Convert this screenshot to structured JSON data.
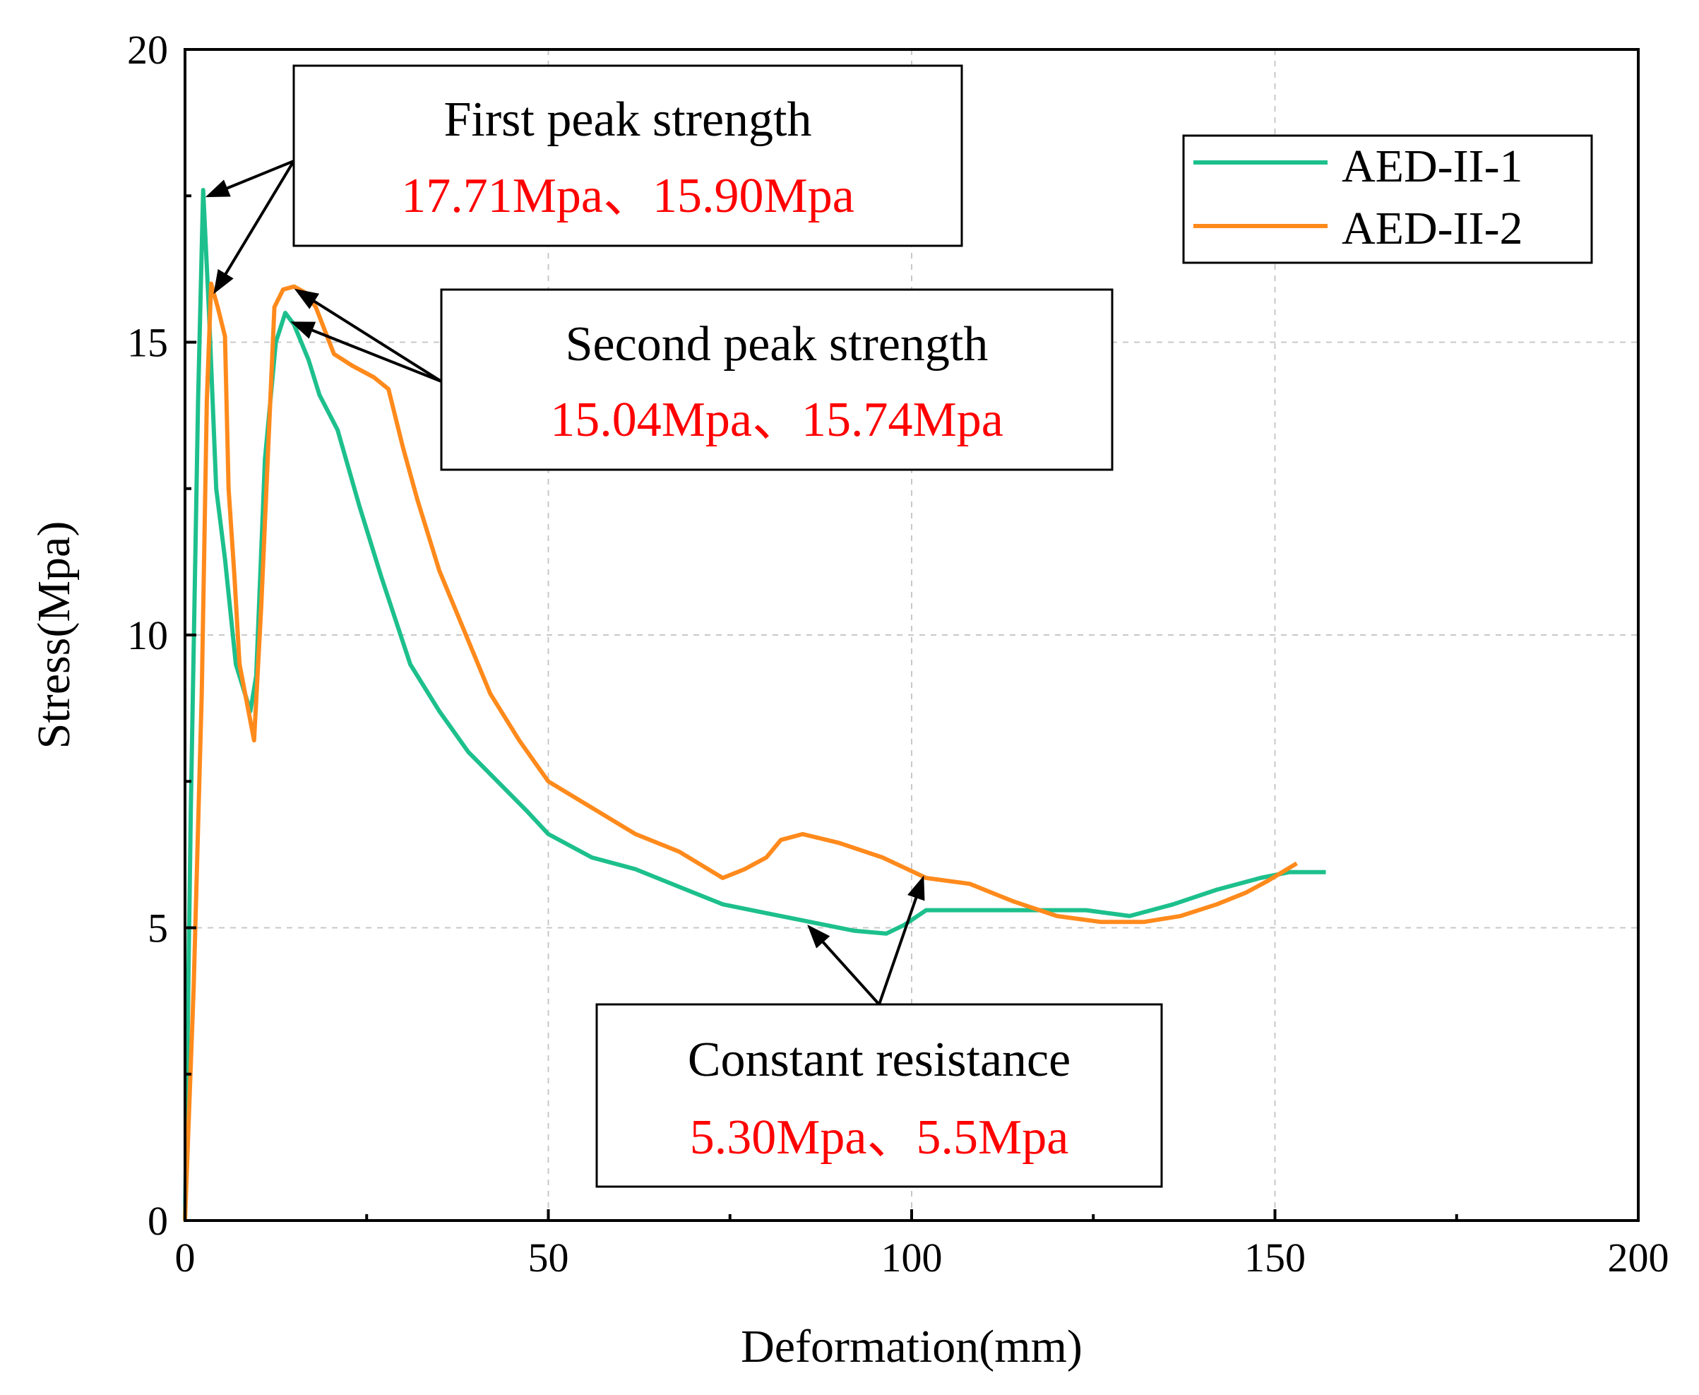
{
  "chart_data": {
    "type": "line",
    "xlabel": "Deformation(mm)",
    "ylabel": "Stress(Mpa)",
    "xlim": [
      0,
      200
    ],
    "ylim": [
      0,
      20
    ],
    "xticks": [
      0,
      50,
      100,
      150,
      200
    ],
    "yticks": [
      0,
      5,
      10,
      15,
      20
    ],
    "grid": true,
    "legend_position": "top-right",
    "series": [
      {
        "name": "AED-II-1",
        "color": "#1dc08c",
        "points": [
          [
            0,
            0
          ],
          [
            0.8,
            7
          ],
          [
            1.8,
            14
          ],
          [
            2.5,
            17.6
          ],
          [
            3.3,
            15.5
          ],
          [
            4.3,
            12.5
          ],
          [
            5.5,
            11.3
          ],
          [
            7,
            9.5
          ],
          [
            9,
            8.7
          ],
          [
            9.8,
            9.3
          ],
          [
            11,
            13
          ],
          [
            12.5,
            15
          ],
          [
            13.8,
            15.5
          ],
          [
            15,
            15.3
          ],
          [
            17,
            14.7
          ],
          [
            18.5,
            14.1
          ],
          [
            21,
            13.5
          ],
          [
            24,
            12.2
          ],
          [
            27,
            11
          ],
          [
            31,
            9.5
          ],
          [
            35,
            8.7
          ],
          [
            39,
            8
          ],
          [
            43,
            7.5
          ],
          [
            47,
            7
          ],
          [
            50,
            6.6
          ],
          [
            56,
            6.2
          ],
          [
            62,
            6
          ],
          [
            68,
            5.7
          ],
          [
            74,
            5.4
          ],
          [
            80,
            5.25
          ],
          [
            86,
            5.1
          ],
          [
            92,
            4.95
          ],
          [
            96.5,
            4.9
          ],
          [
            99,
            5.05
          ],
          [
            102,
            5.3
          ],
          [
            110,
            5.3
          ],
          [
            118,
            5.3
          ],
          [
            124,
            5.3
          ],
          [
            130,
            5.2
          ],
          [
            136,
            5.4
          ],
          [
            142,
            5.65
          ],
          [
            148,
            5.85
          ],
          [
            152,
            5.95
          ],
          [
            157,
            5.95
          ]
        ]
      },
      {
        "name": "AED-II-2",
        "color": "#ff8a1c",
        "points": [
          [
            0,
            0
          ],
          [
            1.2,
            4
          ],
          [
            2.3,
            9
          ],
          [
            3,
            14
          ],
          [
            3.6,
            16
          ],
          [
            4.5,
            15.6
          ],
          [
            5.5,
            15.1
          ],
          [
            6,
            12.5
          ],
          [
            6.8,
            11
          ],
          [
            7.5,
            9.5
          ],
          [
            9.5,
            8.2
          ],
          [
            10.5,
            10.5
          ],
          [
            12.3,
            15.6
          ],
          [
            13.5,
            15.9
          ],
          [
            15,
            15.95
          ],
          [
            16.5,
            15.85
          ],
          [
            18,
            15.6
          ],
          [
            20.5,
            14.8
          ],
          [
            23,
            14.6
          ],
          [
            26,
            14.4
          ],
          [
            28,
            14.2
          ],
          [
            30,
            13.2
          ],
          [
            32,
            12.3
          ],
          [
            35,
            11.1
          ],
          [
            39,
            9.9
          ],
          [
            42,
            9
          ],
          [
            46,
            8.2
          ],
          [
            50,
            7.5
          ],
          [
            56,
            7.05
          ],
          [
            62,
            6.6
          ],
          [
            68,
            6.3
          ],
          [
            74,
            5.85
          ],
          [
            77,
            6
          ],
          [
            80,
            6.2
          ],
          [
            82,
            6.5
          ],
          [
            85,
            6.6
          ],
          [
            90,
            6.45
          ],
          [
            96,
            6.2
          ],
          [
            102,
            5.85
          ],
          [
            108,
            5.75
          ],
          [
            114,
            5.45
          ],
          [
            120,
            5.2
          ],
          [
            126,
            5.1
          ],
          [
            132,
            5.1
          ],
          [
            137,
            5.2
          ],
          [
            142,
            5.4
          ],
          [
            146,
            5.6
          ],
          [
            149,
            5.8
          ],
          [
            153,
            6.1
          ]
        ]
      }
    ],
    "annotations": [
      {
        "title": "First peak strength",
        "value": "17.71Mpa、15.90Mpa"
      },
      {
        "title": "Second peak strength",
        "value": "15.04Mpa、15.74Mpa"
      },
      {
        "title": "Constant resistance",
        "value": "5.30Mpa、5.5Mpa"
      }
    ]
  }
}
